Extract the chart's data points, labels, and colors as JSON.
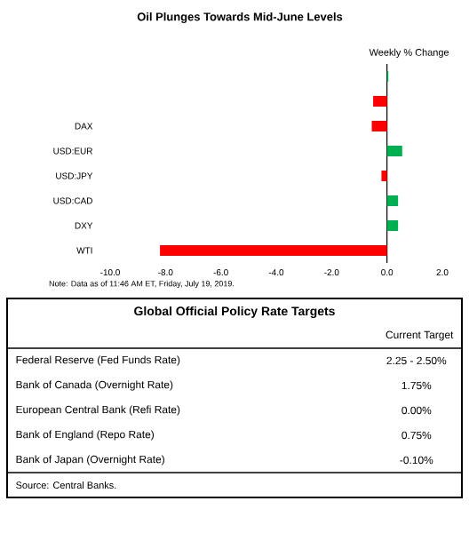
{
  "chart_data": [
    {
      "type": "bar",
      "orientation": "horizontal",
      "title": "Oil Plunges Towards Mid-June Levels",
      "xlabel": "Weekly % Change",
      "categories": [
        null,
        null,
        "DAX",
        "USD:EUR",
        "USD:JPY",
        "USD:CAD",
        "DXY",
        "WTI"
      ],
      "values": [
        0.05,
        -0.5,
        -0.55,
        0.55,
        -0.2,
        0.4,
        0.4,
        -8.2
      ],
      "colors": [
        "#00b050",
        "#ff0000",
        "#ff0000",
        "#00b050",
        "#ff0000",
        "#00b050",
        "#00b050",
        "#ff0000"
      ],
      "xlim": [
        -10,
        2
      ],
      "xticks": [
        {
          "value": -10,
          "label": "-10.0"
        },
        {
          "value": -8,
          "label": "-8.0"
        },
        {
          "value": -6,
          "label": "-6.0"
        },
        {
          "value": -4,
          "label": "-4.0"
        },
        {
          "value": -2,
          "label": "-2.0"
        },
        {
          "value": 0,
          "label": "0.0"
        },
        {
          "value": 2,
          "label": "2.0"
        }
      ],
      "annotations": [
        "Note: Data as of 11:46 AM ET, Friday, July 19, 2019."
      ]
    },
    {
      "type": "other",
      "title": "Global Official Policy Rate Targets",
      "subtitle": "Current Target",
      "categories": [
        "Federal Reserve (Fed Funds Rate)",
        "Bank of Canada (Overnight Rate)",
        "European Central Bank (Refi Rate)",
        "Bank of England (Repo Rate)",
        "Bank of Japan (Overnight Rate)"
      ],
      "value_labels": [
        "2.25 - 2.50%",
        "1.75%",
        "0.00%",
        "0.75%",
        "-0.10%"
      ],
      "annotations": [
        "Source: Central Banks."
      ]
    }
  ]
}
